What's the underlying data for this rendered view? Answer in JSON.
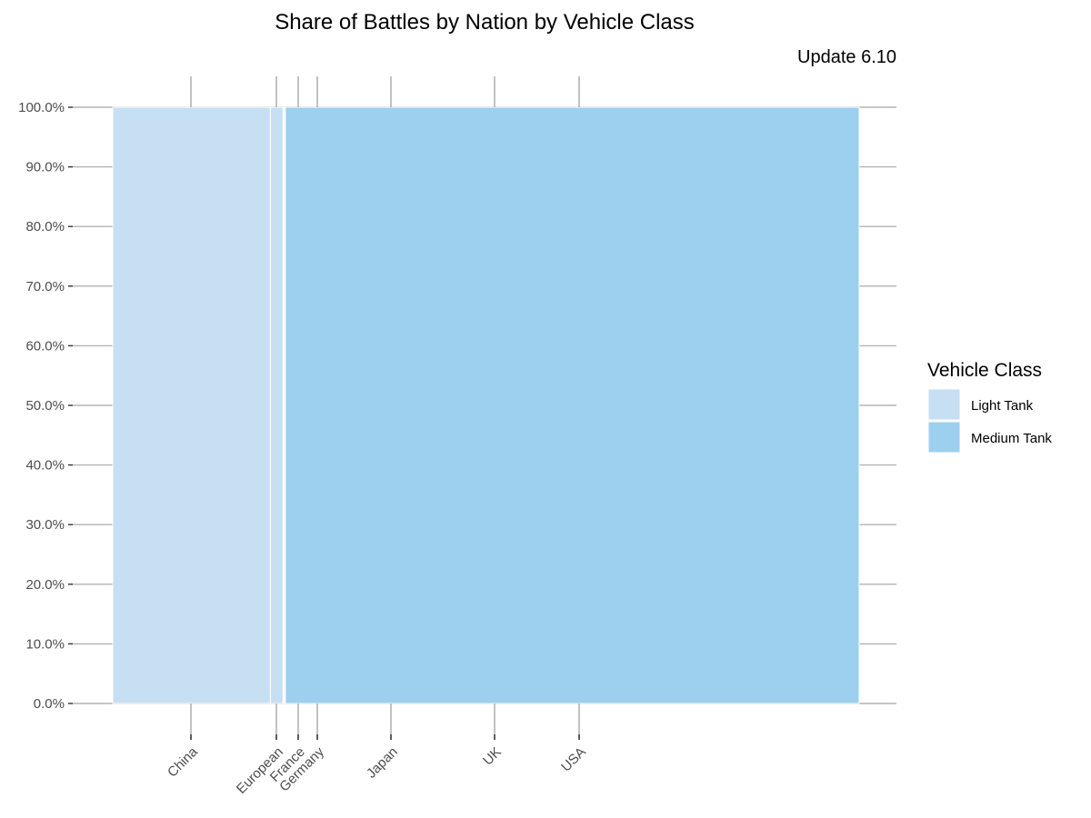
{
  "chart_data": {
    "type": "mosaic",
    "title": "Share of Battles by Nation by Vehicle Class",
    "subtitle": "Update 6.10",
    "xlabel": "",
    "ylabel": "",
    "ylim": [
      0,
      1
    ],
    "y_ticks": [
      "0.0%",
      "10.0%",
      "20.0%",
      "30.0%",
      "40.0%",
      "50.0%",
      "60.0%",
      "70.0%",
      "80.0%",
      "90.0%",
      "100.0%"
    ],
    "categories": [
      "China",
      "European",
      "France",
      "Germany",
      "Japan",
      "UK",
      "USA"
    ],
    "x_share_of_battles": [
      0.211,
      0.017,
      0.001,
      0.001,
      0.0,
      0.001,
      0.768
    ],
    "series": [
      {
        "name": "Light Tank",
        "color": "#c6dff3",
        "values": [
          1,
          1,
          1,
          1,
          1,
          1,
          0
        ]
      },
      {
        "name": "Medium Tank",
        "color": "#9dcfef",
        "values": [
          0,
          0,
          0,
          0,
          0,
          0,
          1
        ]
      }
    ],
    "grid": true,
    "legend": {
      "title": "Vehicle Class",
      "position": "right"
    }
  }
}
